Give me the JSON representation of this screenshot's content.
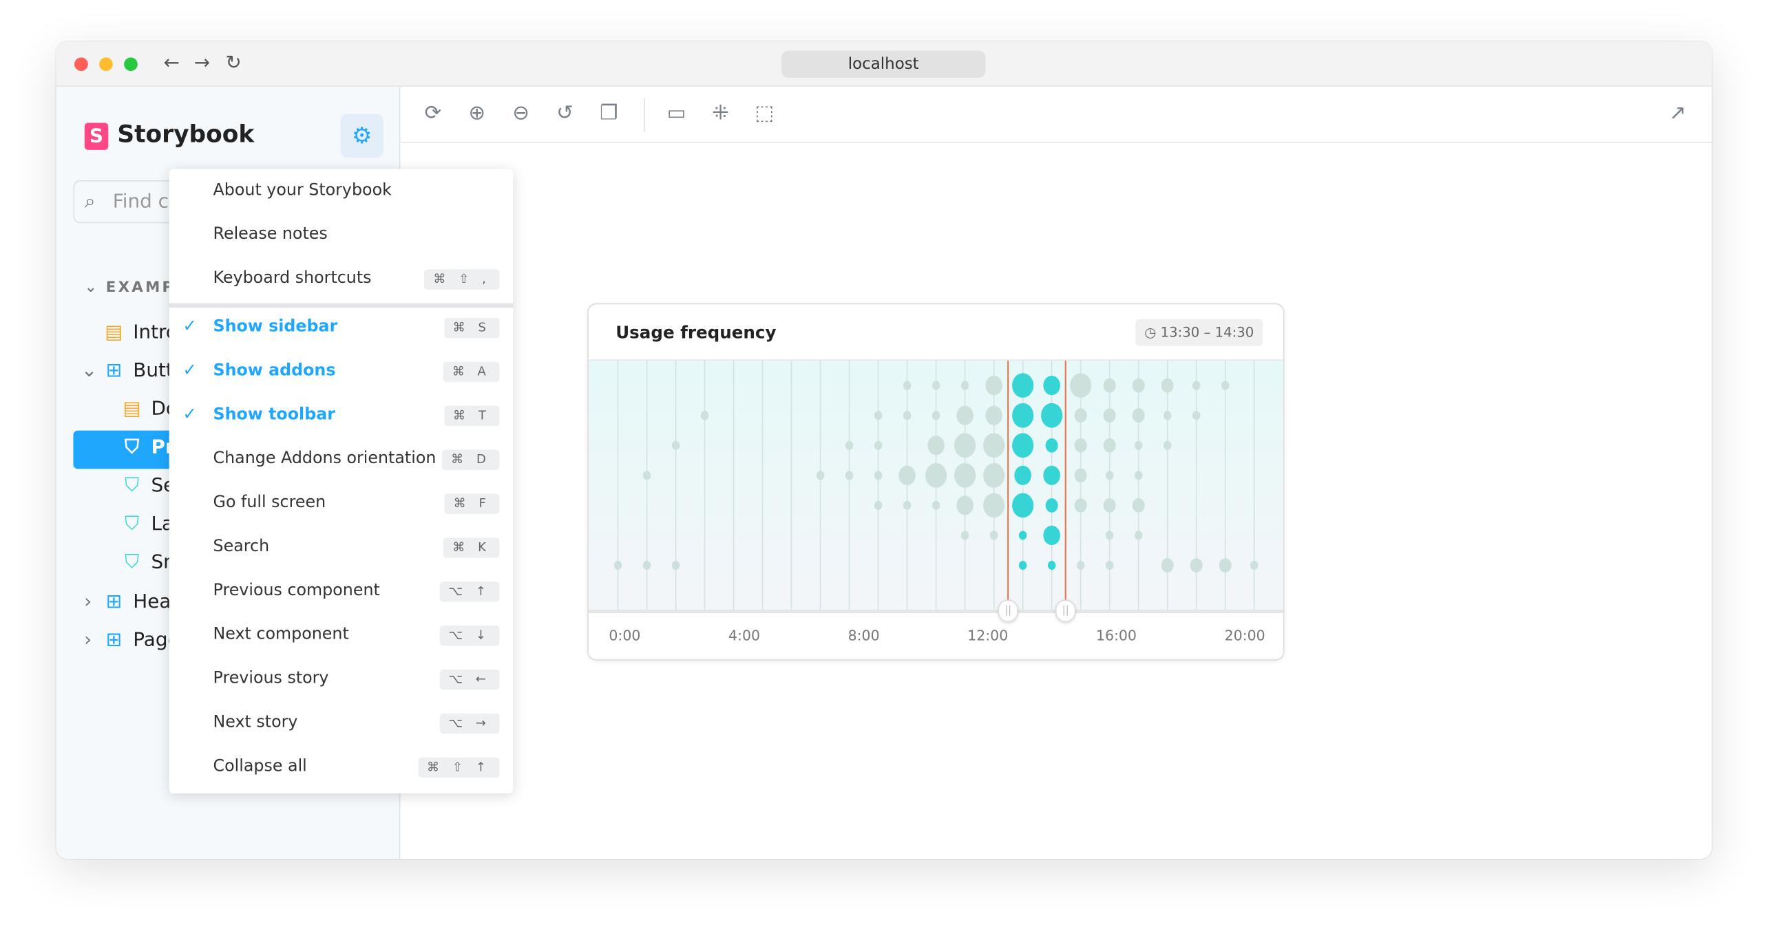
{
  "browser": {
    "url": "localhost",
    "back_icon": "arrow-left-icon",
    "forward_icon": "arrow-right-icon",
    "reload_icon": "reload-icon",
    "traffic_colors": [
      "#ff5f57",
      "#febc2e",
      "#28c840"
    ]
  },
  "sidebar": {
    "brand": "Storybook",
    "logo_letter": "S",
    "search_placeholder": "Find co",
    "section": "EXAMPL",
    "items": [
      {
        "label": "Intro",
        "icon": "doc-icon"
      },
      {
        "label": "Butt",
        "icon": "component-icon"
      },
      {
        "label": "Do",
        "icon": "doc-icon"
      },
      {
        "label": "Pr",
        "icon": "bookmark-icon",
        "selected": true
      },
      {
        "label": "Se",
        "icon": "bookmark-icon"
      },
      {
        "label": "La",
        "icon": "bookmark-icon"
      },
      {
        "label": "Sn",
        "icon": "bookmark-icon"
      },
      {
        "label": "Head",
        "icon": "component-icon"
      },
      {
        "label": "Page",
        "icon": "component-icon"
      }
    ]
  },
  "menu": {
    "items": [
      {
        "label": "About your Storybook",
        "shortcut": ""
      },
      {
        "label": "Release notes",
        "shortcut": ""
      },
      {
        "label": "Keyboard shortcuts",
        "shortcut": "⌘ ⇧ ,"
      },
      {
        "label": "Show sidebar",
        "shortcut": "⌘ S",
        "checked": true
      },
      {
        "label": "Show addons",
        "shortcut": "⌘ A",
        "checked": true
      },
      {
        "label": "Show toolbar",
        "shortcut": "⌘ T",
        "checked": true
      },
      {
        "label": "Change Addons orientation",
        "shortcut": "⌘ D"
      },
      {
        "label": "Go full screen",
        "shortcut": "⌘ F"
      },
      {
        "label": "Search",
        "shortcut": "⌘ K"
      },
      {
        "label": "Previous component",
        "shortcut": "⌥ ↑"
      },
      {
        "label": "Next component",
        "shortcut": "⌥ ↓"
      },
      {
        "label": "Previous story",
        "shortcut": "⌥ ←"
      },
      {
        "label": "Next story",
        "shortcut": "⌥ →"
      },
      {
        "label": "Collapse all",
        "shortcut": "⌘ ⇧ ↑"
      }
    ]
  },
  "toolbar": {
    "icons": [
      "sync-icon",
      "zoom-in-icon",
      "zoom-out-icon",
      "zoom-reset-icon",
      "background-icon",
      "ruler-icon",
      "grid-icon",
      "outline-icon"
    ],
    "open_icon": "external-link-icon"
  },
  "card": {
    "title": "Usage frequency",
    "range": "13:30 – 14:30",
    "x_labels": [
      "0:00",
      "4:00",
      "8:00",
      "12:00",
      "16:00",
      "20:00"
    ],
    "colors": {
      "dot": "#cde0dc",
      "highlight": "#36d4d4",
      "range_line": "#f06b3e"
    },
    "highlight_columns": [
      14,
      15
    ],
    "dot_levels": [
      [
        0,
        0,
        0,
        0,
        0,
        0,
        0,
        0,
        0,
        0,
        1,
        1,
        1,
        3,
        4,
        3,
        4,
        2,
        2,
        2,
        1,
        1,
        0
      ],
      [
        0,
        0,
        0,
        1,
        0,
        0,
        0,
        0,
        0,
        1,
        1,
        1,
        3,
        3,
        4,
        4,
        2,
        2,
        2,
        1,
        1,
        0,
        0
      ],
      [
        0,
        0,
        1,
        0,
        0,
        0,
        0,
        0,
        1,
        1,
        0,
        3,
        4,
        4,
        4,
        2,
        2,
        2,
        1,
        1,
        0,
        0,
        0
      ],
      [
        0,
        1,
        0,
        0,
        0,
        0,
        0,
        1,
        1,
        1,
        3,
        4,
        4,
        4,
        3,
        3,
        2,
        1,
        1,
        0,
        0,
        0,
        0
      ],
      [
        0,
        0,
        0,
        0,
        0,
        0,
        0,
        0,
        0,
        1,
        1,
        1,
        3,
        4,
        4,
        2,
        2,
        2,
        2,
        0,
        0,
        0,
        0
      ],
      [
        0,
        0,
        0,
        0,
        0,
        0,
        0,
        0,
        0,
        0,
        0,
        0,
        1,
        1,
        1,
        3,
        0,
        1,
        1,
        0,
        0,
        0,
        0
      ],
      [
        1,
        1,
        1,
        0,
        0,
        0,
        0,
        0,
        0,
        0,
        0,
        0,
        0,
        0,
        1,
        1,
        1,
        1,
        0,
        2,
        2,
        2,
        1
      ]
    ]
  }
}
